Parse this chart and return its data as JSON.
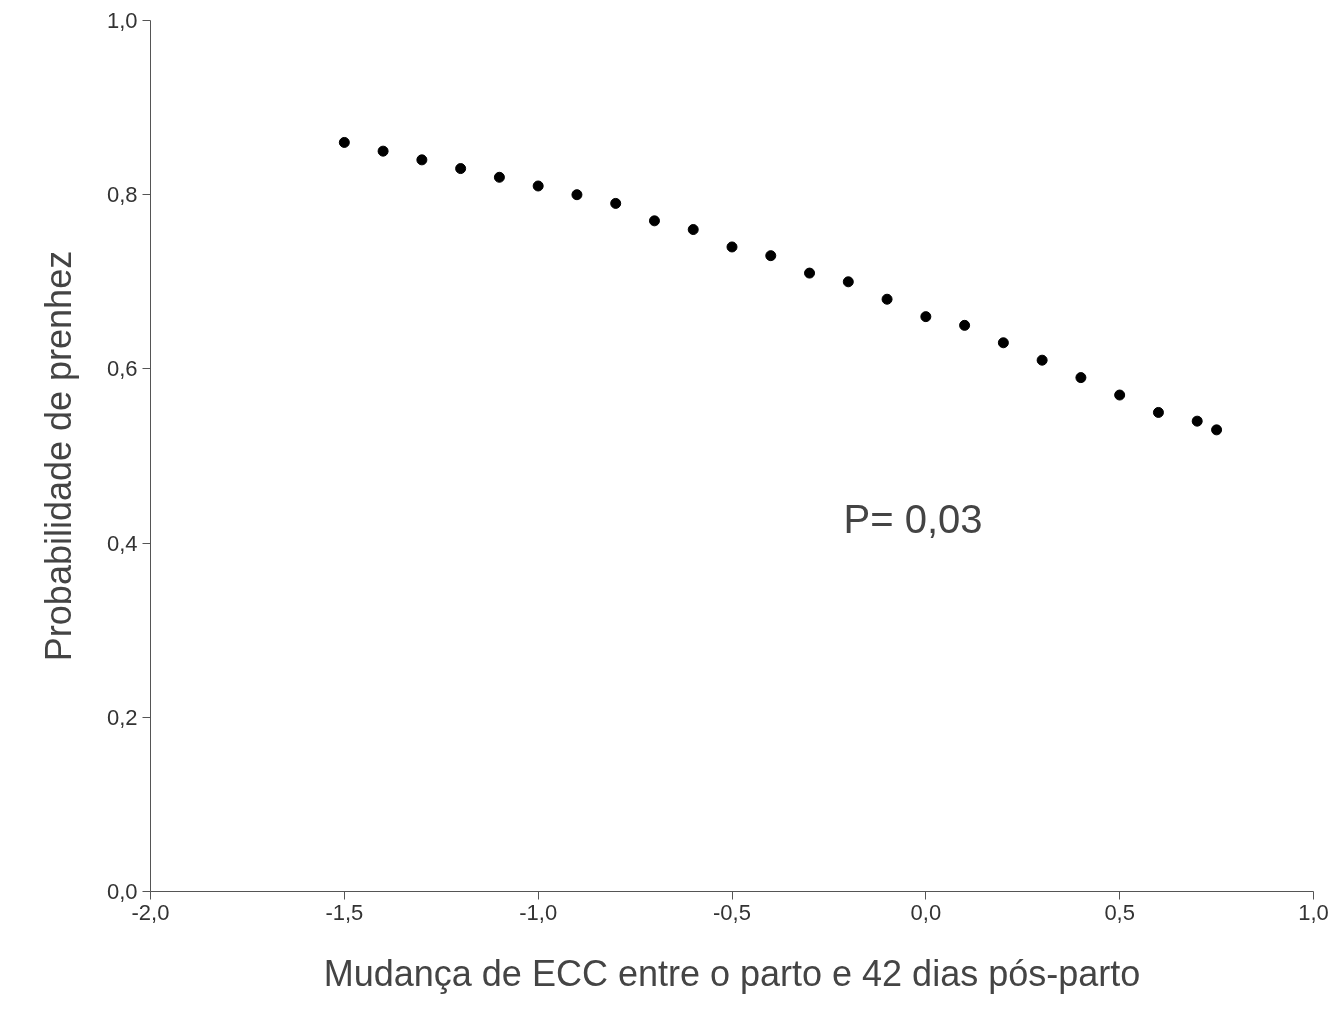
{
  "chart_data": {
    "type": "scatter",
    "xlabel": "Mudança de ECC entre o parto e 42 dias pós-parto",
    "ylabel": "Probabilidade de prenhez",
    "x": [
      -1.5,
      -1.4,
      -1.3,
      -1.2,
      -1.1,
      -1.0,
      -0.9,
      -0.8,
      -0.7,
      -0.6,
      -0.5,
      -0.4,
      -0.3,
      -0.2,
      -0.1,
      0.0,
      0.1,
      0.2,
      0.3,
      0.4,
      0.5,
      0.6,
      0.7,
      0.75
    ],
    "series": [
      {
        "color": "#000000",
        "values": [
          0.86,
          0.85,
          0.84,
          0.83,
          0.82,
          0.81,
          0.8,
          0.79,
          0.77,
          0.76,
          0.74,
          0.73,
          0.71,
          0.7,
          0.68,
          0.66,
          0.65,
          0.63,
          0.61,
          0.59,
          0.57,
          0.55,
          0.54,
          0.53
        ]
      }
    ],
    "marker": "circle",
    "xlim": [
      -2.0,
      1.0
    ],
    "ylim": [
      0.0,
      1.0
    ],
    "xticks": [
      {
        "value": -2.0,
        "label": "-2,0"
      },
      {
        "value": -1.5,
        "label": "-1,5"
      },
      {
        "value": -1.0,
        "label": "-1,0"
      },
      {
        "value": -0.5,
        "label": "-0,5"
      },
      {
        "value": 0.0,
        "label": "0,0"
      },
      {
        "value": 0.5,
        "label": "0,5"
      },
      {
        "value": 1.0,
        "label": "1,0"
      }
    ],
    "yticks": [
      {
        "value": 0.0,
        "label": "0,0"
      },
      {
        "value": 0.2,
        "label": "0,2"
      },
      {
        "value": 0.4,
        "label": "0,4"
      },
      {
        "value": 0.6,
        "label": "0,6"
      },
      {
        "value": 0.8,
        "label": "0,8"
      },
      {
        "value": 1.0,
        "label": "1,0"
      }
    ],
    "grid": false,
    "annotations": [
      "P= 0,03"
    ]
  }
}
